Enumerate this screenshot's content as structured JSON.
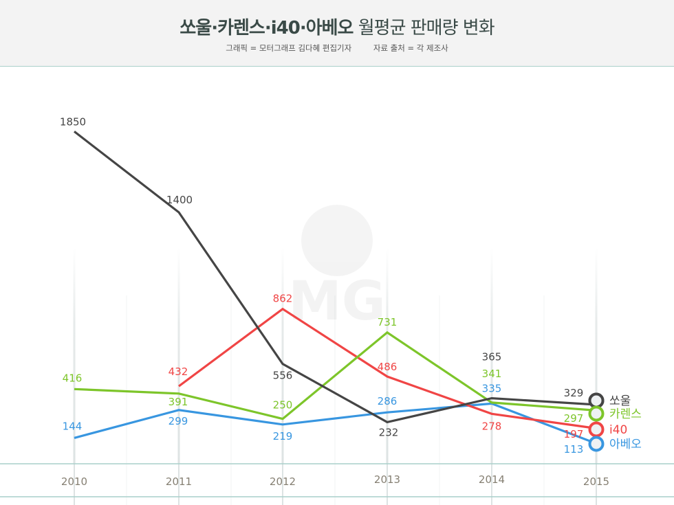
{
  "header": {
    "title_bold": "쏘울·카렌스·i40·아베오",
    "title_rest": "월평균 판매량 변화",
    "credit_graphic": "그래픽 = 모터그래프 김다혜 편집기자",
    "credit_source": "자료 출처 = 각 제조사"
  },
  "watermark": {
    "text": "MG",
    "icon": "motorgraph-logo-icon"
  },
  "chart_data": {
    "type": "line",
    "title": "쏘울·카렌스·i40·아베오 월평균 판매량 변화",
    "xlabel": "",
    "ylabel": "",
    "ylim": [
      0,
      2000
    ],
    "grid": "vertical",
    "legend_placement": "right-end",
    "categories": [
      "2010",
      "2011",
      "2012",
      "2013",
      "2014",
      "2015"
    ],
    "series": [
      {
        "name": "쏘울",
        "color": "#454545",
        "values": [
          1850,
          1400,
          556,
          232,
          365,
          329
        ],
        "labels": [
          "1850",
          "1400",
          "556",
          "232",
          "365",
          "329"
        ]
      },
      {
        "name": "카렌스",
        "color": "#7dc52a",
        "values": [
          416,
          391,
          250,
          731,
          341,
          297
        ],
        "labels": [
          "416",
          "391",
          "250",
          "731",
          "341",
          "297"
        ]
      },
      {
        "name": "i40",
        "color": "#f04545",
        "values": [
          null,
          432,
          862,
          486,
          278,
          197
        ],
        "labels": [
          "",
          "432",
          "862",
          "486",
          "278",
          "197"
        ]
      },
      {
        "name": "아베오",
        "color": "#3896e0",
        "values": [
          144,
          299,
          219,
          286,
          335,
          113
        ],
        "labels": [
          "144",
          "299",
          "219",
          "286",
          "335",
          "113"
        ]
      }
    ]
  }
}
